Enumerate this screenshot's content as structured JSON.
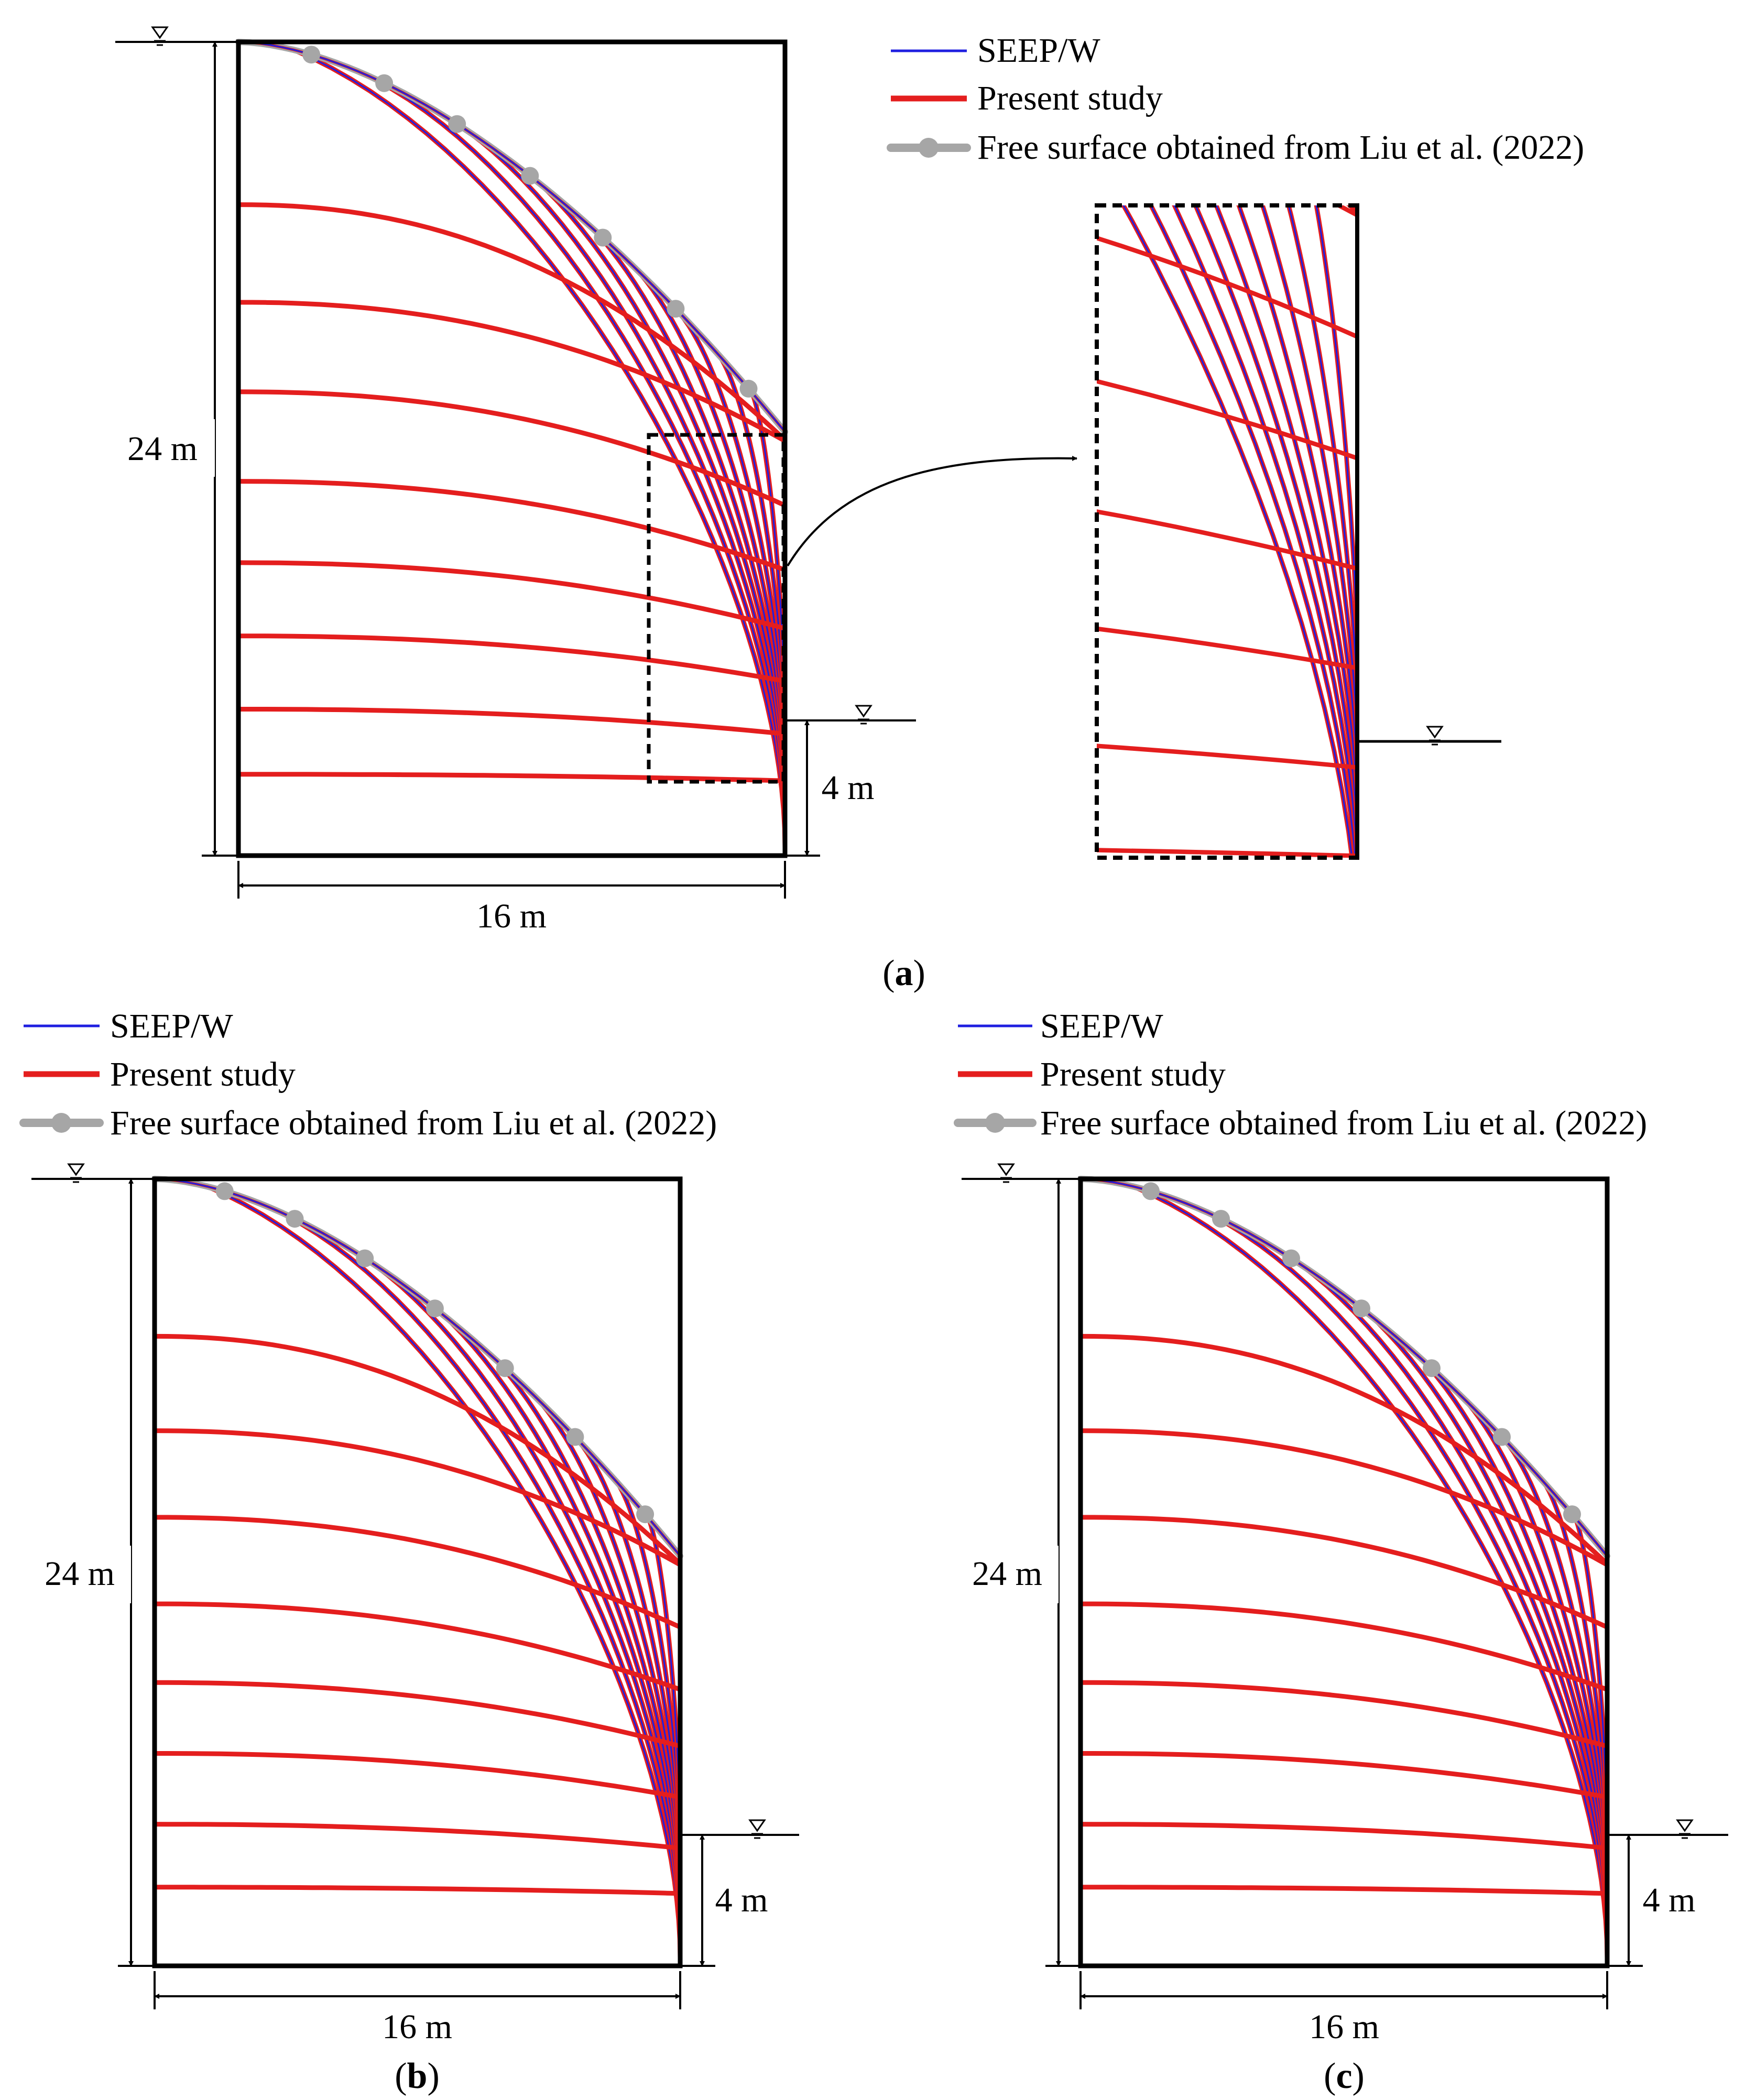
{
  "legend": {
    "seep_label": "SEEP/W",
    "present_label": "Present study",
    "free_surface_label": "Free surface obtained from Liu et al. (2022)"
  },
  "dimensions": {
    "height": "24 m",
    "width": "16 m",
    "outlet": "4 m"
  },
  "panels": {
    "a": "a",
    "b": "b",
    "c": "c"
  },
  "colors": {
    "seep": "#1f1fe0",
    "present": "#e41e1e",
    "free_surface": "#a6a6a6",
    "boundary": "#000000"
  },
  "model": {
    "width_m": 16,
    "height_m": 24,
    "downstream_water_level_m": 4,
    "seepage_face_top_m": 12.5
  }
}
